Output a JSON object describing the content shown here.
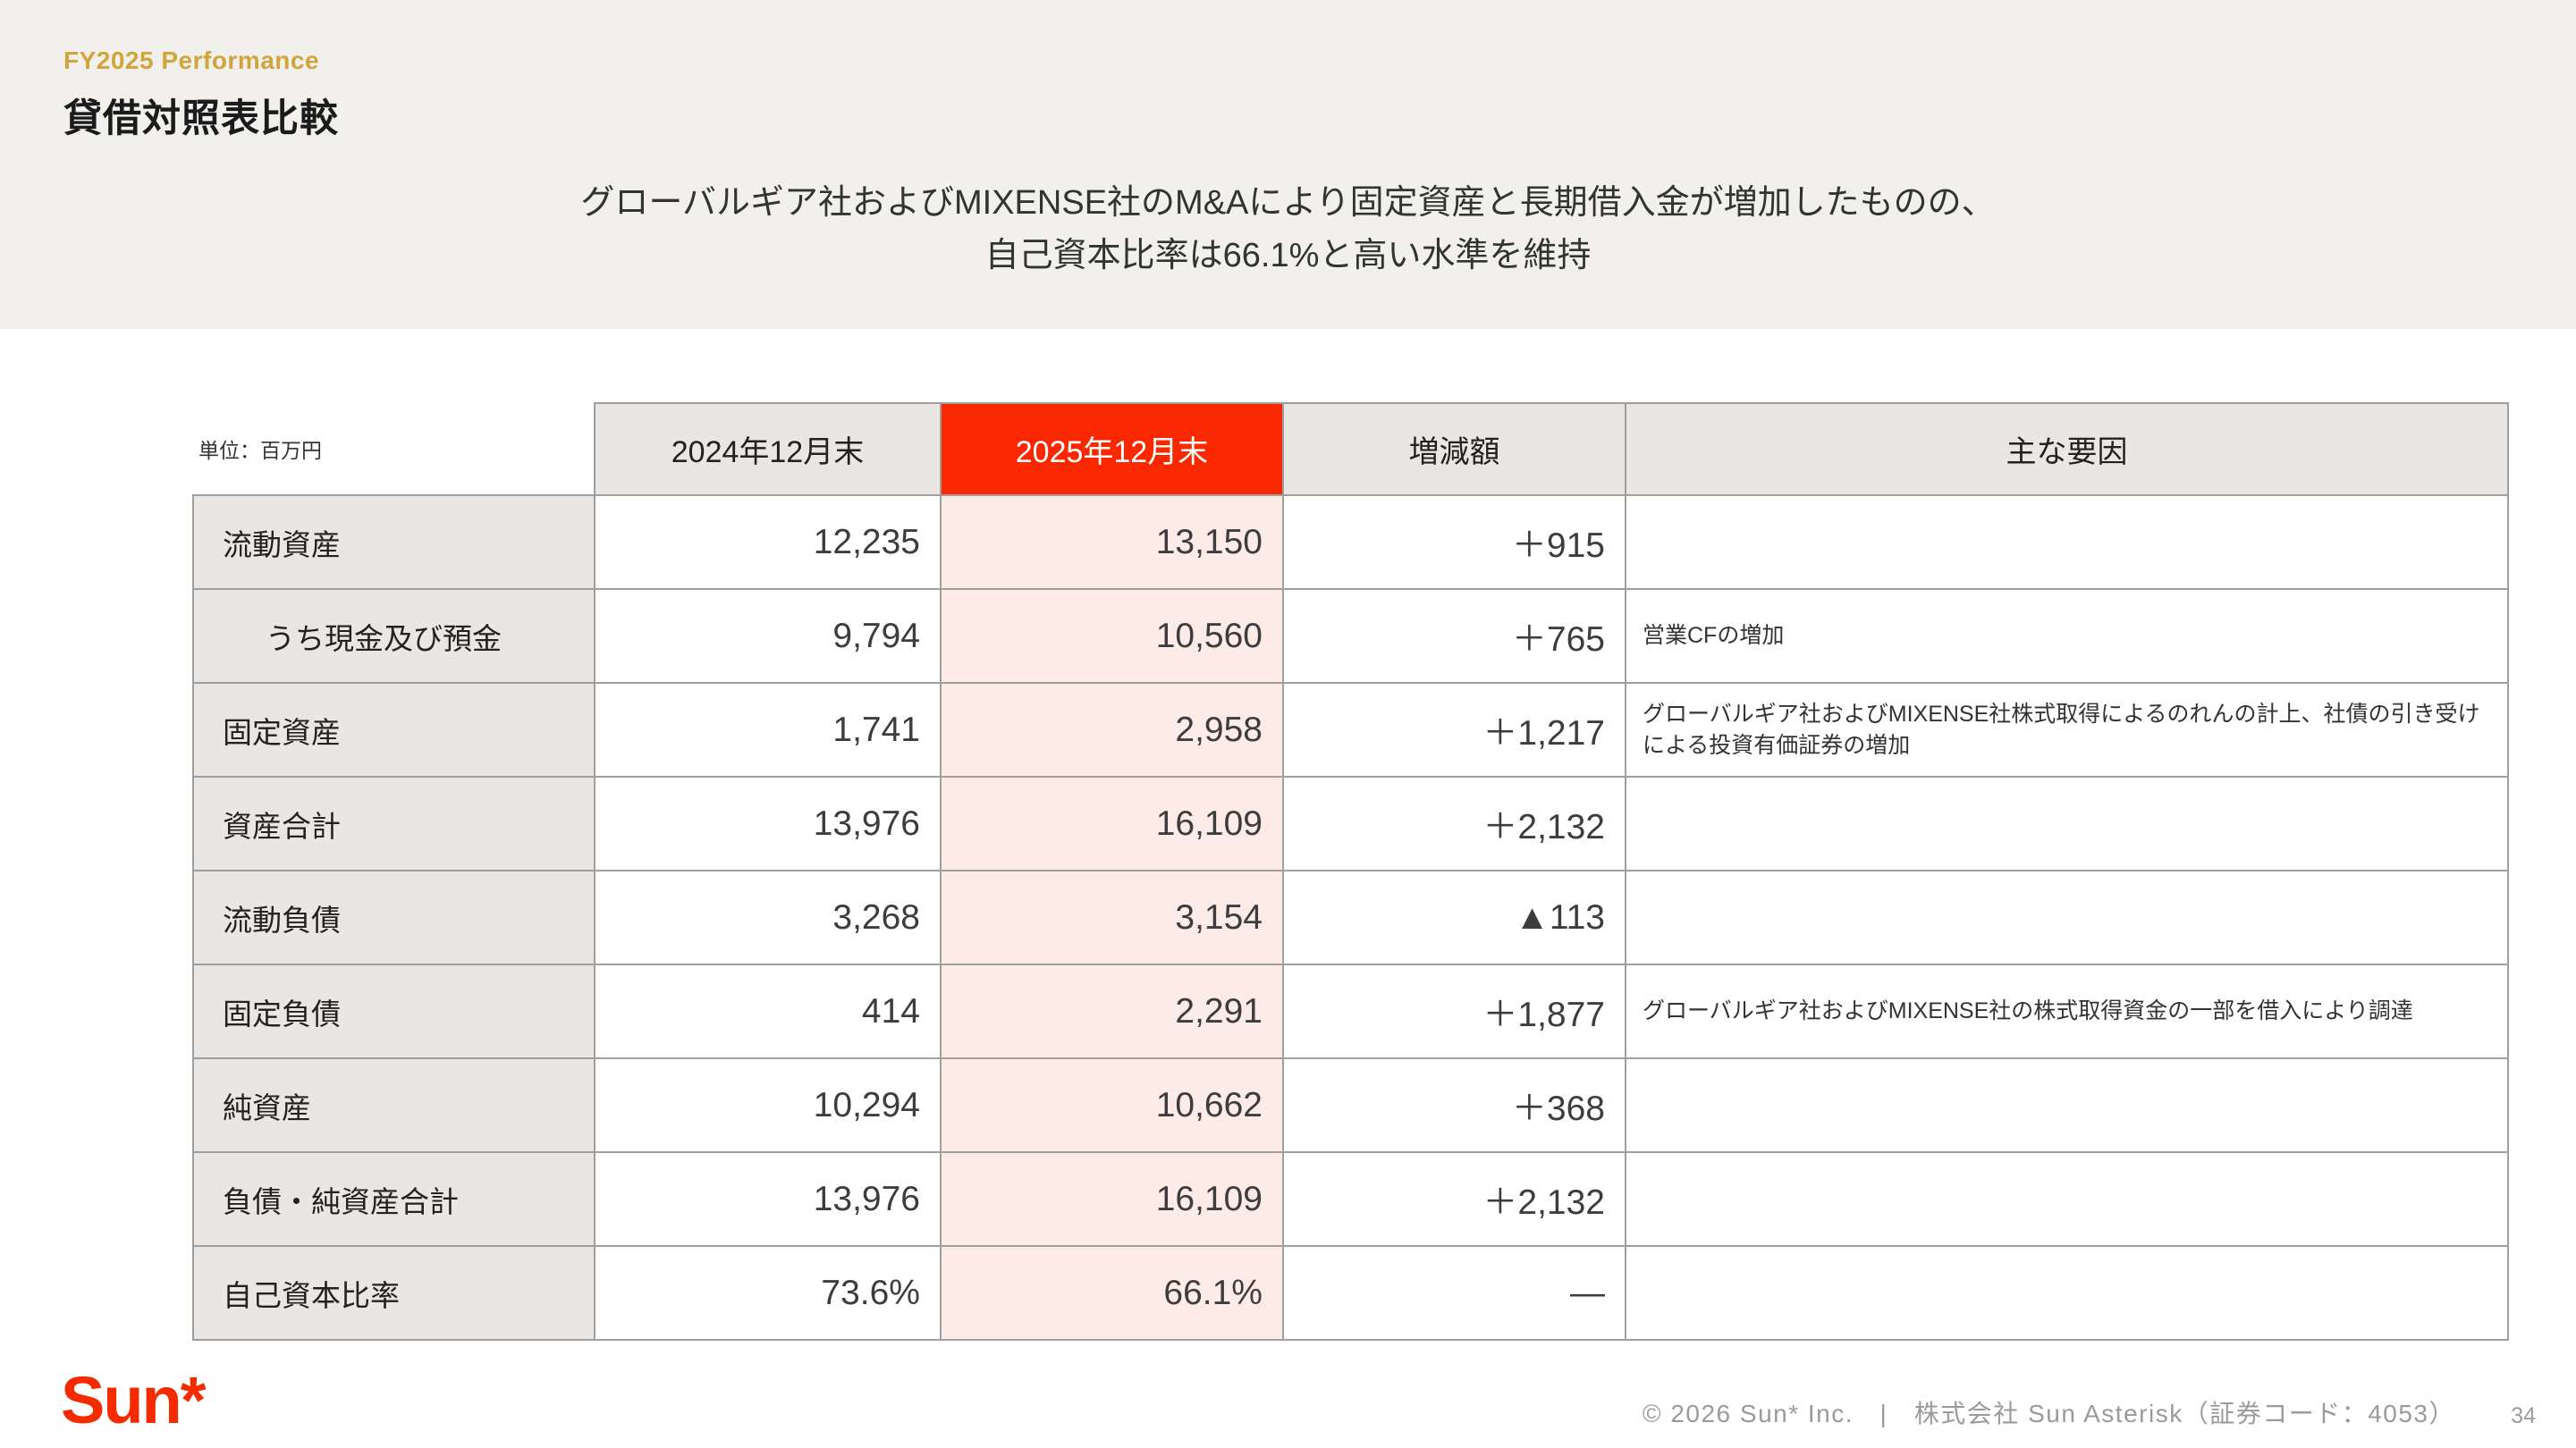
{
  "header": {
    "eyebrow": "FY2025 Performance",
    "title": "貸借対照表比較",
    "subtitle_line1": "グローバルギア社およびMIXENSE社のM&Aにより固定資産と長期借入金が増加したものの、",
    "subtitle_line2": "自己資本比率は66.1%と高い水準を維持"
  },
  "table": {
    "unit_label": "単位：百万円",
    "columns": [
      "2024年12月末",
      "2025年12月末",
      "増減額",
      "主な要因"
    ],
    "rows": [
      {
        "label": "流動資産",
        "v2024": "12,235",
        "v2025": "13,150",
        "diff": "＋915",
        "factor": ""
      },
      {
        "label": "うち現金及び預金",
        "v2024": "9,794",
        "v2025": "10,560",
        "diff": "＋765",
        "factor": "営業CFの増加"
      },
      {
        "label": "固定資産",
        "v2024": "1,741",
        "v2025": "2,958",
        "diff": "＋1,217",
        "factor": "グローバルギア社およびMIXENSE社株式取得によるのれんの計上、社債の引き受けによる投資有価証券の増加"
      },
      {
        "label": "資産合計",
        "v2024": "13,976",
        "v2025": "16,109",
        "diff": "＋2,132",
        "factor": ""
      },
      {
        "label": "流動負債",
        "v2024": "3,268",
        "v2025": "3,154",
        "diff": "▲113",
        "factor": ""
      },
      {
        "label": "固定負債",
        "v2024": "414",
        "v2025": "2,291",
        "diff": "＋1,877",
        "factor": "グローバルギア社およびMIXENSE社の株式取得資金の一部を借入により調達"
      },
      {
        "label": "純資産",
        "v2024": "10,294",
        "v2025": "10,662",
        "diff": "＋368",
        "factor": ""
      },
      {
        "label": "負債・純資産合計",
        "v2024": "13,976",
        "v2025": "16,109",
        "diff": "＋2,132",
        "factor": ""
      },
      {
        "label": "自己資本比率",
        "v2024": "73.6%",
        "v2025": "66.1%",
        "diff": "—",
        "factor": ""
      }
    ]
  },
  "footer": {
    "logo_text": "Sun",
    "logo_mark": "*",
    "copyright": "© 2026 Sun* Inc.　|　株式会社 Sun Asterisk（証券コード：4053）",
    "page_number": "34"
  },
  "colors": {
    "accent_red": "#fa2800",
    "gold": "#cfa53c",
    "highlight_pink": "#fdebe7",
    "cell_gray": "#e9e6e3",
    "band_gray": "#f2f0ed",
    "border_gray": "#9f9f9f"
  }
}
